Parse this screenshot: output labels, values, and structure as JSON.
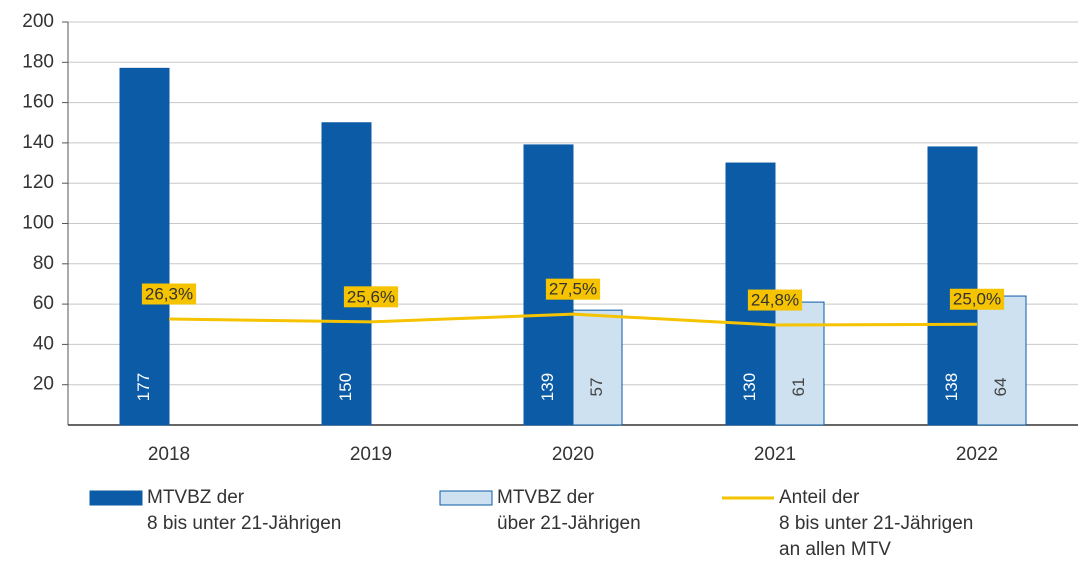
{
  "chart_data": {
    "type": "bar",
    "categories": [
      "2018",
      "2019",
      "2020",
      "2021",
      "2022"
    ],
    "series": [
      {
        "name": "MTVBZ der\n8 bis unter 21-Jährigen",
        "type": "bar",
        "color": "#0b5ba6",
        "values": [
          177,
          150,
          139,
          130,
          138
        ]
      },
      {
        "name": "MTVBZ der\nüber 21-Jährigen",
        "type": "bar",
        "color": "#cde1f0",
        "values": [
          null,
          null,
          57,
          61,
          64
        ]
      },
      {
        "name": "Anteil der\n8 bis unter 21-Jährigen\nan allen MTV",
        "type": "line",
        "axis": "y2",
        "color": "#f5c300",
        "values": [
          26.3,
          25.6,
          27.5,
          24.8,
          25.0
        ],
        "value_labels": [
          "26,3%",
          "25,6%",
          "27,5%",
          "24,8%",
          "25,0%"
        ]
      }
    ],
    "ylim": [
      0,
      200
    ],
    "yticks": [
      20,
      40,
      60,
      80,
      100,
      120,
      140,
      160,
      180,
      200
    ],
    "y2lim": [
      0,
      100
    ],
    "grid": true,
    "legend": "bottom"
  }
}
